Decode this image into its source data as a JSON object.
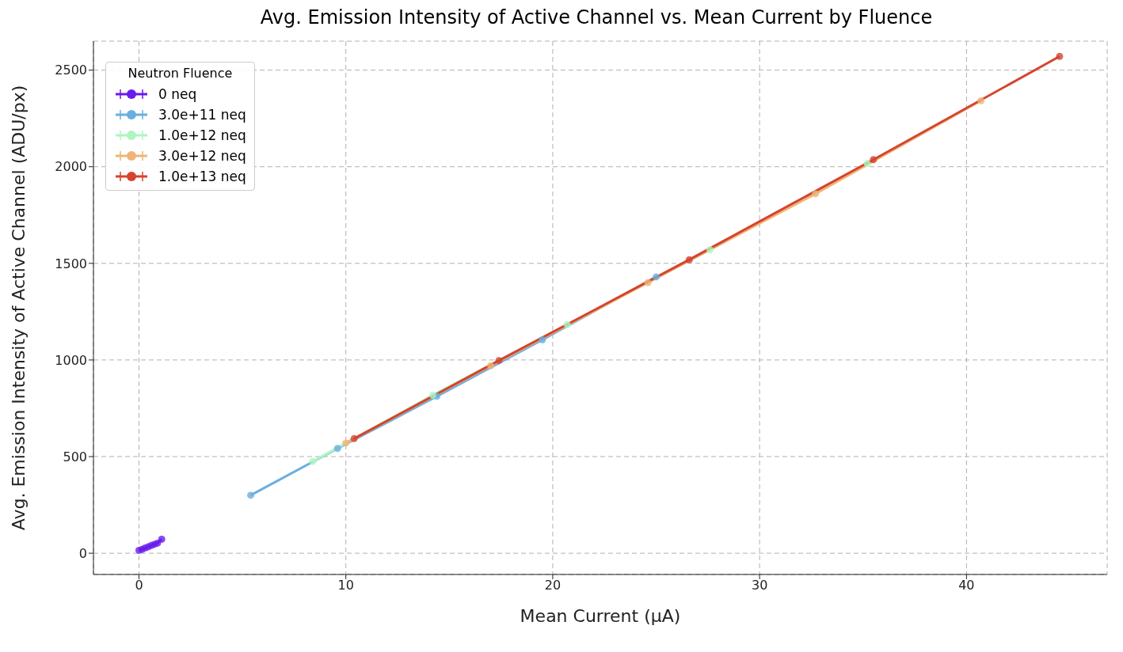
{
  "chart_data": {
    "type": "line",
    "title": "Avg. Emission Intensity of Active Channel vs. Mean Current by Fluence",
    "xlabel": "Mean Current (µA)",
    "ylabel": "Avg. Emission Intensity of Active Channel (ADU/px)",
    "legend_title": "Neutron Fluence",
    "legend": "top left",
    "grid": true,
    "marker": "circle",
    "line_style": "solid",
    "xlim": [
      -2.2,
      46.8
    ],
    "xticks": [
      0,
      10,
      20,
      30,
      40
    ],
    "ylim": [
      -110,
      2650
    ],
    "yticks": [
      0,
      500,
      1000,
      1500,
      2000,
      2500
    ],
    "series": [
      {
        "name": "0 neq",
        "color": "#6a1bee",
        "x": [
          0,
          0.15,
          0.3,
          0.45,
          0.6,
          0.75,
          0.9,
          1.1
        ],
        "values": [
          15,
          20,
          27,
          33,
          40,
          46,
          52,
          72
        ]
      },
      {
        "name": "3.0e+11 neq",
        "color": "#6aafe0",
        "x": [
          5.4,
          9.6,
          14.4,
          19.5,
          25.0
        ],
        "values": [
          300,
          542,
          812,
          1104,
          1430
        ]
      },
      {
        "name": "1.0e+12 neq",
        "color": "#aef5c0",
        "x": [
          8.4,
          14.2,
          20.7,
          27.6,
          35.2
        ],
        "values": [
          475,
          818,
          1183,
          1570,
          2017
        ]
      },
      {
        "name": "3.0e+12 neq",
        "color": "#eeb577",
        "x": [
          10.0,
          17.0,
          24.6,
          32.7,
          40.7
        ],
        "values": [
          570,
          970,
          1400,
          1860,
          2342
        ]
      },
      {
        "name": "1.0e+13 neq",
        "color": "#d6432e",
        "x": [
          10.4,
          17.4,
          26.6,
          35.5,
          44.5
        ],
        "values": [
          593,
          997,
          1519,
          2037,
          2571
        ]
      }
    ]
  }
}
